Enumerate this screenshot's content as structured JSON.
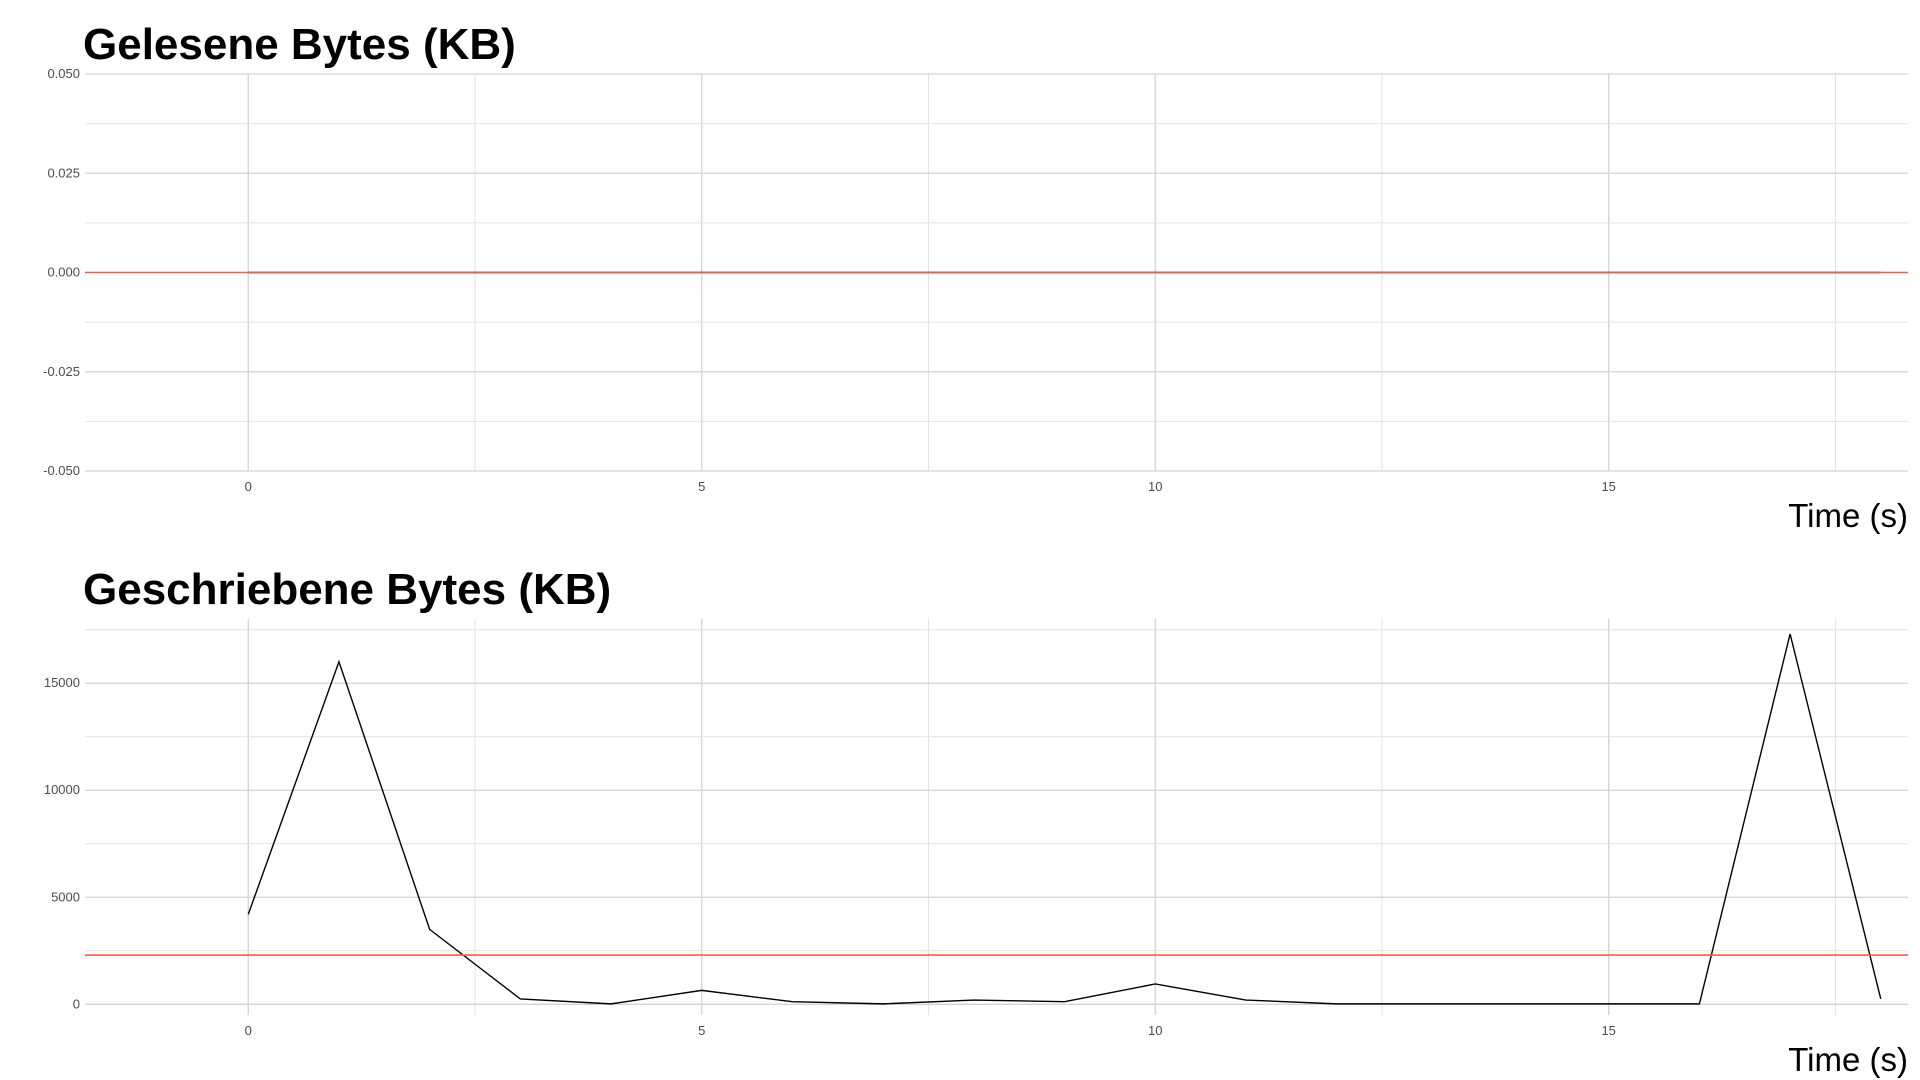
{
  "chart_data": [
    {
      "type": "line",
      "title": "Gelesene Bytes (KB)",
      "xlabel": "Time (s)",
      "ylabel": "",
      "xlim": [
        -1.8,
        18.3
      ],
      "ylim": [
        -0.05,
        0.05
      ],
      "x_ticks": [
        0,
        5,
        10,
        15
      ],
      "x_tick_labels": [
        "0",
        "5",
        "10",
        "15"
      ],
      "y_ticks": [
        0.05,
        0.025,
        0.0,
        -0.025,
        -0.05
      ],
      "y_tick_labels": [
        "0.050",
        "0.025",
        "0.000",
        "-0.025",
        "-0.050"
      ],
      "grid": true,
      "series": [
        {
          "x": [
            0,
            1,
            2,
            3,
            4,
            5,
            6,
            7,
            8,
            9,
            10,
            11,
            12,
            13,
            14,
            15,
            16,
            17,
            18
          ],
          "values": [
            0,
            0,
            0,
            0,
            0,
            0,
            0,
            0,
            0,
            0,
            0,
            0,
            0,
            0,
            0,
            0,
            0,
            0,
            0
          ],
          "color": "#000000"
        }
      ],
      "hline": {
        "value": 0.0,
        "color": "#e8624a"
      }
    },
    {
      "type": "line",
      "title": "Geschriebene Bytes (KB)",
      "xlabel": "Time (s)",
      "ylabel": "",
      "xlim": [
        -1.8,
        18.3
      ],
      "ylim": [
        -500,
        18000
      ],
      "x_ticks": [
        0,
        5,
        10,
        15
      ],
      "x_tick_labels": [
        "0",
        "5",
        "10",
        "15"
      ],
      "y_ticks": [
        0,
        5000,
        10000,
        15000
      ],
      "y_tick_labels": [
        "0",
        "5000",
        "10000",
        "15000"
      ],
      "grid": true,
      "series": [
        {
          "x": [
            0,
            1,
            2,
            3,
            4,
            5,
            6,
            7,
            8,
            9,
            10,
            11,
            12,
            13,
            14,
            15,
            16,
            17,
            18
          ],
          "values": [
            4200,
            16000,
            3500,
            250,
            20,
            650,
            120,
            20,
            200,
            120,
            950,
            200,
            20,
            20,
            20,
            20,
            20,
            17300,
            250
          ],
          "color": "#000000"
        }
      ],
      "hline": {
        "value": 2300,
        "color": "#e8624a"
      }
    }
  ]
}
